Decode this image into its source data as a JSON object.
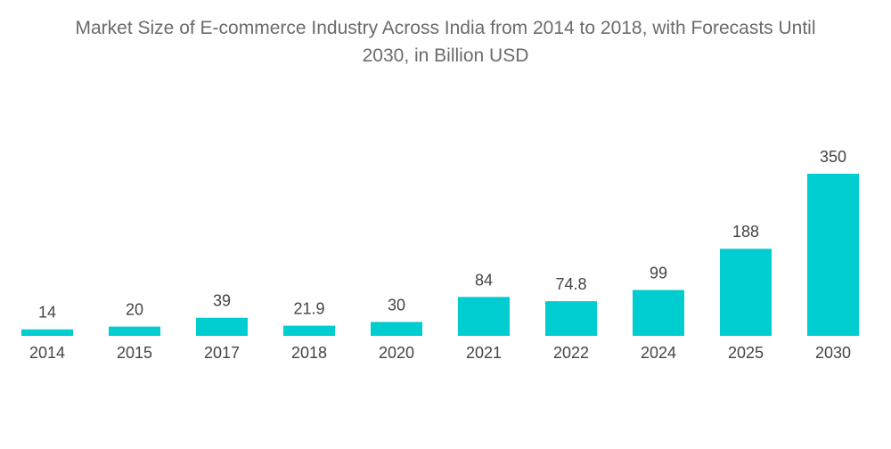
{
  "chart_data": {
    "type": "bar",
    "title_lines": [
      "Market Size of E-commerce Industry Across India from 2014 to 2018, with Forecasts Until",
      "2030, in Billion USD"
    ],
    "categories": [
      "2014",
      "2015",
      "2017",
      "2018",
      "2020",
      "2021",
      "2022",
      "2024",
      "2025",
      "2030"
    ],
    "values": [
      14,
      20,
      39,
      21.9,
      30,
      84,
      74.8,
      99,
      188,
      350
    ],
    "value_labels": [
      "14",
      "20",
      "39",
      "21.9",
      "30",
      "84",
      "74.8",
      "99",
      "188",
      "350"
    ],
    "xlabel": "",
    "ylabel": "",
    "ylim": [
      0,
      350
    ],
    "grid": false,
    "legend": "none",
    "bar_color": "#00cdd0"
  }
}
